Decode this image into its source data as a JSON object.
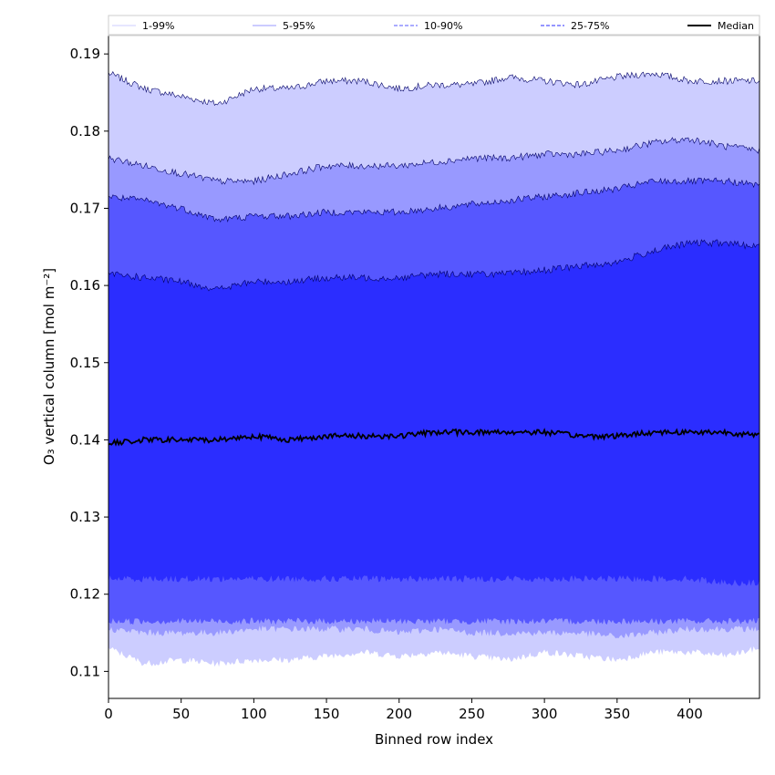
{
  "chart_data": {
    "type": "area",
    "xlabel": "Binned row index",
    "ylabel": "O₃ vertical column [mol m⁻²]",
    "xlim": [
      0,
      448
    ],
    "ylim": [
      0.1065,
      0.1925
    ],
    "xticks": [
      0,
      50,
      100,
      150,
      200,
      250,
      300,
      350,
      400
    ],
    "yticks": [
      0.11,
      0.12,
      0.13,
      0.14,
      0.15,
      0.16,
      0.17,
      0.18,
      0.19
    ],
    "ytick_labels": [
      "0.11",
      "0.12",
      "0.13",
      "0.14",
      "0.15",
      "0.16",
      "0.17",
      "0.18",
      "0.19"
    ],
    "grid": false,
    "legend_position": "top, horizontal",
    "x": [
      0,
      25,
      50,
      75,
      100,
      125,
      150,
      175,
      200,
      225,
      250,
      275,
      300,
      325,
      350,
      375,
      400,
      425,
      448
    ],
    "bands": [
      {
        "name": "1-99%",
        "color": "#cccdff",
        "line_style": "solid",
        "lower": [
          0.113,
          0.111,
          0.1115,
          0.111,
          0.1115,
          0.1115,
          0.112,
          0.1125,
          0.112,
          0.1125,
          0.112,
          0.1115,
          0.1125,
          0.112,
          0.1115,
          0.1125,
          0.1125,
          0.112,
          0.113
        ],
        "upper": [
          0.1875,
          0.1855,
          0.1845,
          0.1835,
          0.1855,
          0.1855,
          0.1865,
          0.1865,
          0.1855,
          0.186,
          0.186,
          0.187,
          0.1865,
          0.186,
          0.187,
          0.1875,
          0.1865,
          0.1865,
          0.1865
        ]
      },
      {
        "name": "5-95%",
        "color": "#9899ff",
        "line_style": "solid",
        "lower": [
          0.1155,
          0.115,
          0.115,
          0.115,
          0.1155,
          0.1155,
          0.1155,
          0.1155,
          0.115,
          0.1155,
          0.115,
          0.115,
          0.115,
          0.115,
          0.1145,
          0.115,
          0.1155,
          0.1155,
          0.1155
        ],
        "upper": [
          0.1765,
          0.1755,
          0.1745,
          0.1735,
          0.1735,
          0.1745,
          0.1755,
          0.1755,
          0.1755,
          0.176,
          0.1765,
          0.1765,
          0.177,
          0.177,
          0.1775,
          0.1785,
          0.179,
          0.178,
          0.1775
        ]
      },
      {
        "name": "10-90%",
        "color": "#5657ff",
        "line_style": "dashed",
        "lower": [
          0.1165,
          0.1165,
          0.1165,
          0.1165,
          0.1165,
          0.1165,
          0.1165,
          0.1165,
          0.1165,
          0.1165,
          0.1165,
          0.1165,
          0.1165,
          0.1165,
          0.1165,
          0.1165,
          0.1165,
          0.1165,
          0.1165
        ],
        "upper": [
          0.1715,
          0.171,
          0.17,
          0.1685,
          0.169,
          0.169,
          0.1695,
          0.1695,
          0.1695,
          0.17,
          0.1705,
          0.171,
          0.1715,
          0.172,
          0.1725,
          0.1735,
          0.1735,
          0.1735,
          0.173
        ]
      },
      {
        "name": "25-75%",
        "color": "#2b2dff",
        "line_style": "dashed",
        "lower": [
          0.122,
          0.122,
          0.122,
          0.122,
          0.122,
          0.122,
          0.122,
          0.122,
          0.122,
          0.122,
          0.122,
          0.122,
          0.122,
          0.122,
          0.122,
          0.122,
          0.122,
          0.1215,
          0.1215
        ],
        "upper": [
          0.1615,
          0.161,
          0.1605,
          0.1595,
          0.1605,
          0.1605,
          0.161,
          0.161,
          0.161,
          0.1615,
          0.1615,
          0.1615,
          0.162,
          0.1625,
          0.163,
          0.1645,
          0.1655,
          0.1655,
          0.165
        ]
      }
    ],
    "median": {
      "name": "Median",
      "color": "#000000",
      "values": [
        0.1395,
        0.14,
        0.14,
        0.14,
        0.1405,
        0.14,
        0.1405,
        0.1405,
        0.1405,
        0.141,
        0.141,
        0.141,
        0.141,
        0.1405,
        0.1405,
        0.141,
        0.141,
        0.141,
        0.1405
      ]
    }
  }
}
